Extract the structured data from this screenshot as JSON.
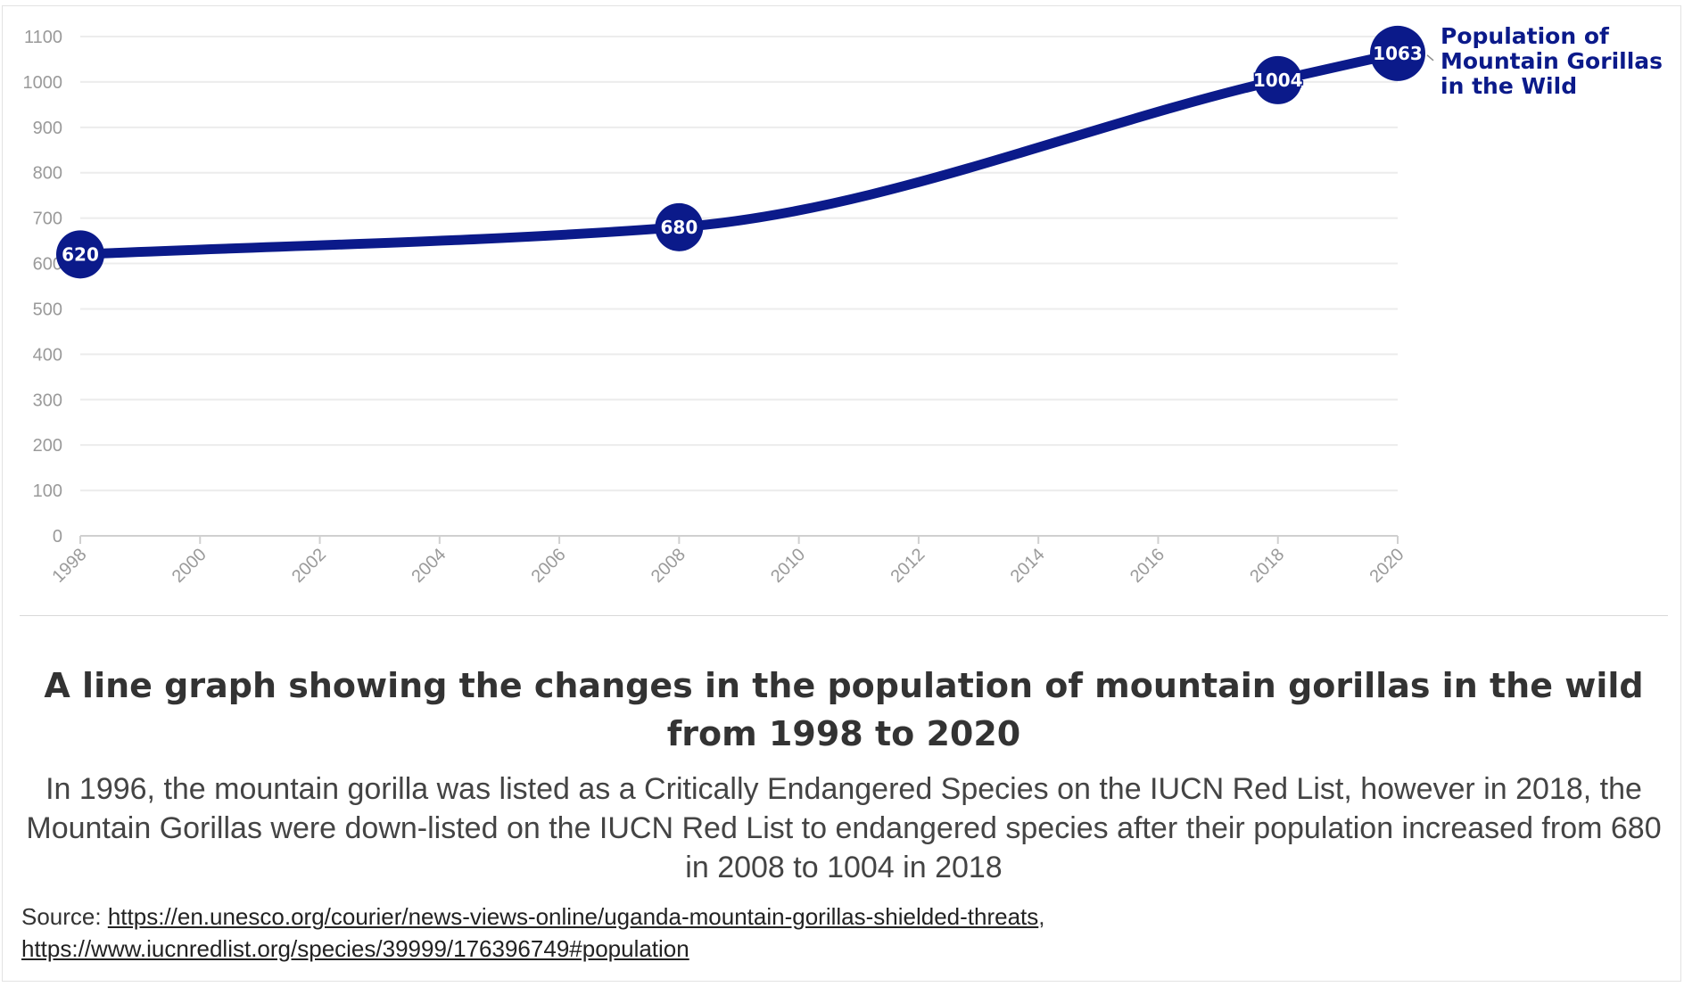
{
  "chart_data": {
    "type": "line",
    "title": "A line graph showing the changes in the population of mountain gorillas in the wild from 1998 to 2020",
    "subtitle": "In 1996, the mountain gorilla was listed as a Critically Endangered Species on the IUCN Red List, however in 2018, the Mountain Gorillas were down-listed on the IUCN Red List to endangered species after their population increased from 680 in 2008 to 1004 in 2018",
    "x_ticks": [
      "1998",
      "2000",
      "2002",
      "2004",
      "2006",
      "2008",
      "2010",
      "2012",
      "2014",
      "2016",
      "2018",
      "2020"
    ],
    "y_ticks": [
      "0",
      "100",
      "200",
      "300",
      "400",
      "500",
      "600",
      "700",
      "800",
      "900",
      "1000",
      "1100"
    ],
    "xlim": [
      1998,
      2020
    ],
    "ylim": [
      0,
      1100
    ],
    "grid": true,
    "series": [
      {
        "name": "Population of Mountain Gorillas in the Wild",
        "name_lines": [
          "Population of",
          "Mountain Gorillas",
          "in the Wild"
        ],
        "color": "#0b1a8a",
        "x": [
          1998,
          2008,
          2018,
          2020
        ],
        "values": [
          620,
          680,
          1004,
          1063
        ],
        "labels": [
          "620",
          "680",
          "1004",
          "1063"
        ]
      }
    ]
  },
  "source": {
    "prefix": "Source: ",
    "link1": "https://en.unesco.org/courier/news-views-online/uganda-mountain-gorillas-shielded-threats",
    "separator": ",",
    "link2": "https://www.iucnredlist.org/species/39999/176396749#population"
  }
}
